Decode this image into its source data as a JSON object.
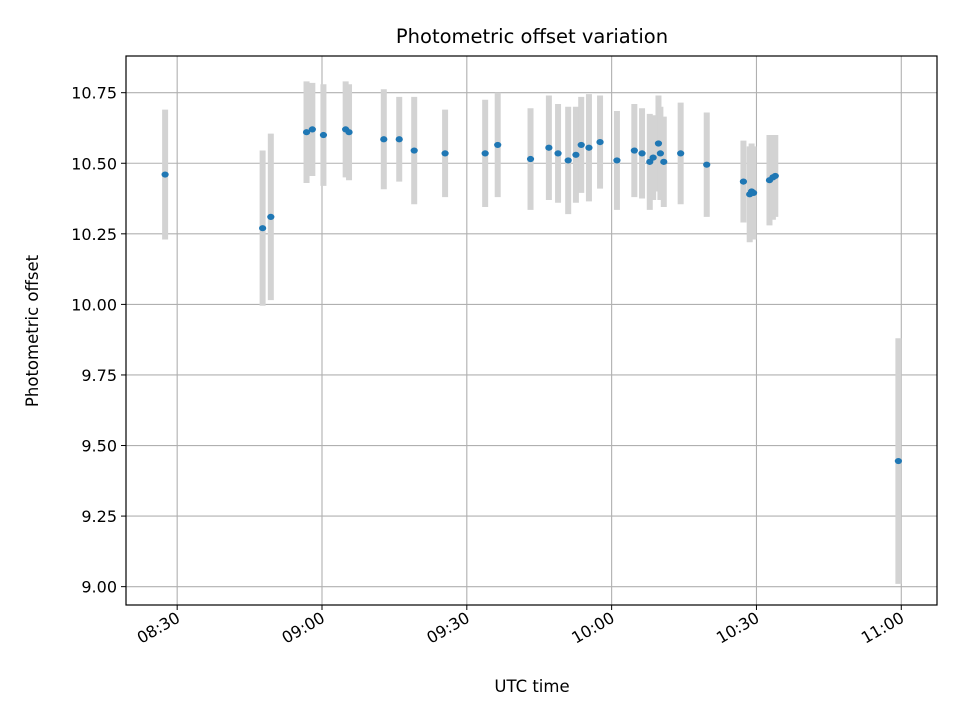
{
  "chart_data": {
    "type": "scatter",
    "title": "Photometric offset variation",
    "xlabel": "UTC time",
    "ylabel": "Photometric offset",
    "x_unit": "HH:MM UTC",
    "xlim": [
      "08:19:24",
      "11:07:24"
    ],
    "ylim": [
      8.935,
      10.88
    ],
    "x_ticks": [
      "08:30",
      "09:00",
      "09:30",
      "10:00",
      "10:30",
      "11:00"
    ],
    "y_ticks": [
      "9.00",
      "9.25",
      "9.50",
      "9.75",
      "10.00",
      "10.25",
      "10.50",
      "10.75"
    ],
    "grid": true,
    "marker_color": "#1f77b4",
    "errorbar_color": "#d3d3d3",
    "series": [
      {
        "points": [
          {
            "x": "08:27:30",
            "y": 10.46,
            "yerr": 0.23
          },
          {
            "x": "08:47:42",
            "y": 10.27,
            "yerr": 0.275
          },
          {
            "x": "08:49:24",
            "y": 10.31,
            "yerr": 0.295
          },
          {
            "x": "08:56:48",
            "y": 10.61,
            "yerr": 0.18
          },
          {
            "x": "08:58:00",
            "y": 10.62,
            "yerr": 0.165
          },
          {
            "x": "09:00:18",
            "y": 10.6,
            "yerr": 0.18
          },
          {
            "x": "09:04:54",
            "y": 10.62,
            "yerr": 0.17
          },
          {
            "x": "09:05:36",
            "y": 10.61,
            "yerr": 0.17
          },
          {
            "x": "09:12:48",
            "y": 10.585,
            "yerr": 0.177
          },
          {
            "x": "09:16:00",
            "y": 10.585,
            "yerr": 0.15
          },
          {
            "x": "09:19:06",
            "y": 10.545,
            "yerr": 0.19
          },
          {
            "x": "09:25:30",
            "y": 10.535,
            "yerr": 0.155
          },
          {
            "x": "09:33:48",
            "y": 10.535,
            "yerr": 0.19
          },
          {
            "x": "09:36:24",
            "y": 10.565,
            "yerr": 0.185
          },
          {
            "x": "09:43:12",
            "y": 10.515,
            "yerr": 0.18
          },
          {
            "x": "09:47:00",
            "y": 10.555,
            "yerr": 0.185
          },
          {
            "x": "09:48:54",
            "y": 10.535,
            "yerr": 0.175
          },
          {
            "x": "09:51:00",
            "y": 10.51,
            "yerr": 0.19
          },
          {
            "x": "09:52:36",
            "y": 10.53,
            "yerr": 0.17
          },
          {
            "x": "09:53:42",
            "y": 10.565,
            "yerr": 0.17
          },
          {
            "x": "09:55:18",
            "y": 10.555,
            "yerr": 0.19
          },
          {
            "x": "09:57:36",
            "y": 10.575,
            "yerr": 0.165
          },
          {
            "x": "10:01:06",
            "y": 10.51,
            "yerr": 0.175
          },
          {
            "x": "10:04:42",
            "y": 10.545,
            "yerr": 0.165
          },
          {
            "x": "10:06:18",
            "y": 10.535,
            "yerr": 0.16
          },
          {
            "x": "10:07:54",
            "y": 10.505,
            "yerr": 0.17
          },
          {
            "x": "10:08:36",
            "y": 10.52,
            "yerr": 0.15
          },
          {
            "x": "10:09:42",
            "y": 10.57,
            "yerr": 0.17
          },
          {
            "x": "10:10:06",
            "y": 10.535,
            "yerr": 0.165
          },
          {
            "x": "10:10:48",
            "y": 10.505,
            "yerr": 0.16
          },
          {
            "x": "10:14:18",
            "y": 10.535,
            "yerr": 0.18
          },
          {
            "x": "10:19:42",
            "y": 10.495,
            "yerr": 0.185
          },
          {
            "x": "10:27:18",
            "y": 10.435,
            "yerr": 0.145
          },
          {
            "x": "10:28:36",
            "y": 10.39,
            "yerr": 0.17
          },
          {
            "x": "10:29:00",
            "y": 10.4,
            "yerr": 0.17
          },
          {
            "x": "10:29:24",
            "y": 10.395,
            "yerr": 0.165
          },
          {
            "x": "10:32:42",
            "y": 10.44,
            "yerr": 0.16
          },
          {
            "x": "10:33:24",
            "y": 10.45,
            "yerr": 0.15
          },
          {
            "x": "10:33:54",
            "y": 10.455,
            "yerr": 0.145
          },
          {
            "x": "10:59:24",
            "y": 9.445,
            "yerr": 0.435
          }
        ]
      }
    ]
  }
}
